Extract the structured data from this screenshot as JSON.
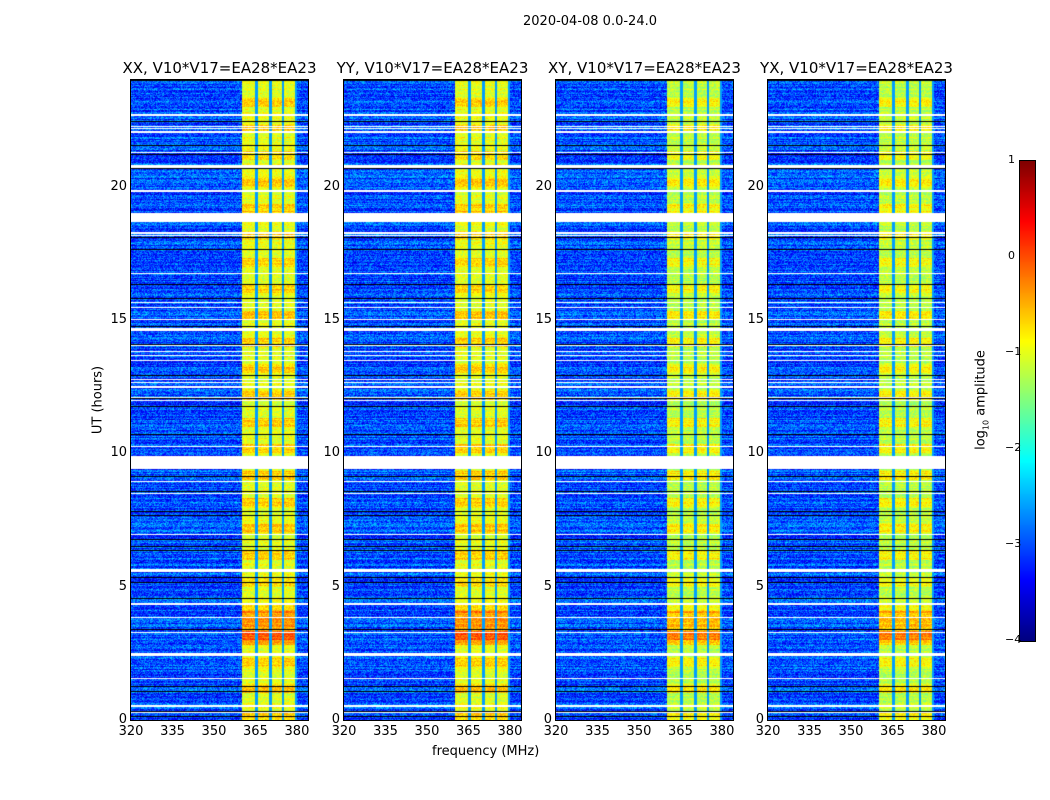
{
  "suptitle": "2020-04-08 0.0-24.0",
  "chart_data": {
    "type": "heatmap",
    "panels": [
      {
        "title": "XX, V10*V17=EA28*EA23"
      },
      {
        "title": "YY, V10*V17=EA28*EA23"
      },
      {
        "title": "XY, V10*V17=EA28*EA23"
      },
      {
        "title": "YX, V10*V17=EA28*EA23"
      }
    ],
    "xlabel": "frequency (MHz)",
    "ylabel": "UT (hours)",
    "xlim": [
      320,
      384
    ],
    "ylim": [
      0,
      24
    ],
    "xticks": [
      "320",
      "335",
      "350",
      "365",
      "380"
    ],
    "yticks": [
      "0",
      "5",
      "10",
      "15",
      "20"
    ],
    "bright_band_MHz": [
      360,
      380
    ],
    "band_channel_edges_MHz": [
      365.5,
      370.5,
      375
    ],
    "flagged_hours": [
      [
        9.4,
        9.9
      ],
      [
        5.55,
        5.65
      ],
      [
        18.7,
        19.0
      ],
      [
        0.5,
        0.55
      ],
      [
        2.4,
        2.5
      ],
      [
        4.3,
        4.4
      ],
      [
        14.6,
        14.7
      ],
      [
        20.7,
        20.8
      ],
      [
        22.0,
        22.1
      ]
    ],
    "colorbar": {
      "label": "log10 amplitude",
      "range": [
        -4,
        1
      ],
      "ticks": [
        "1",
        "0",
        "−1",
        "−2",
        "−3",
        "−4"
      ],
      "colormap": "jet"
    }
  }
}
